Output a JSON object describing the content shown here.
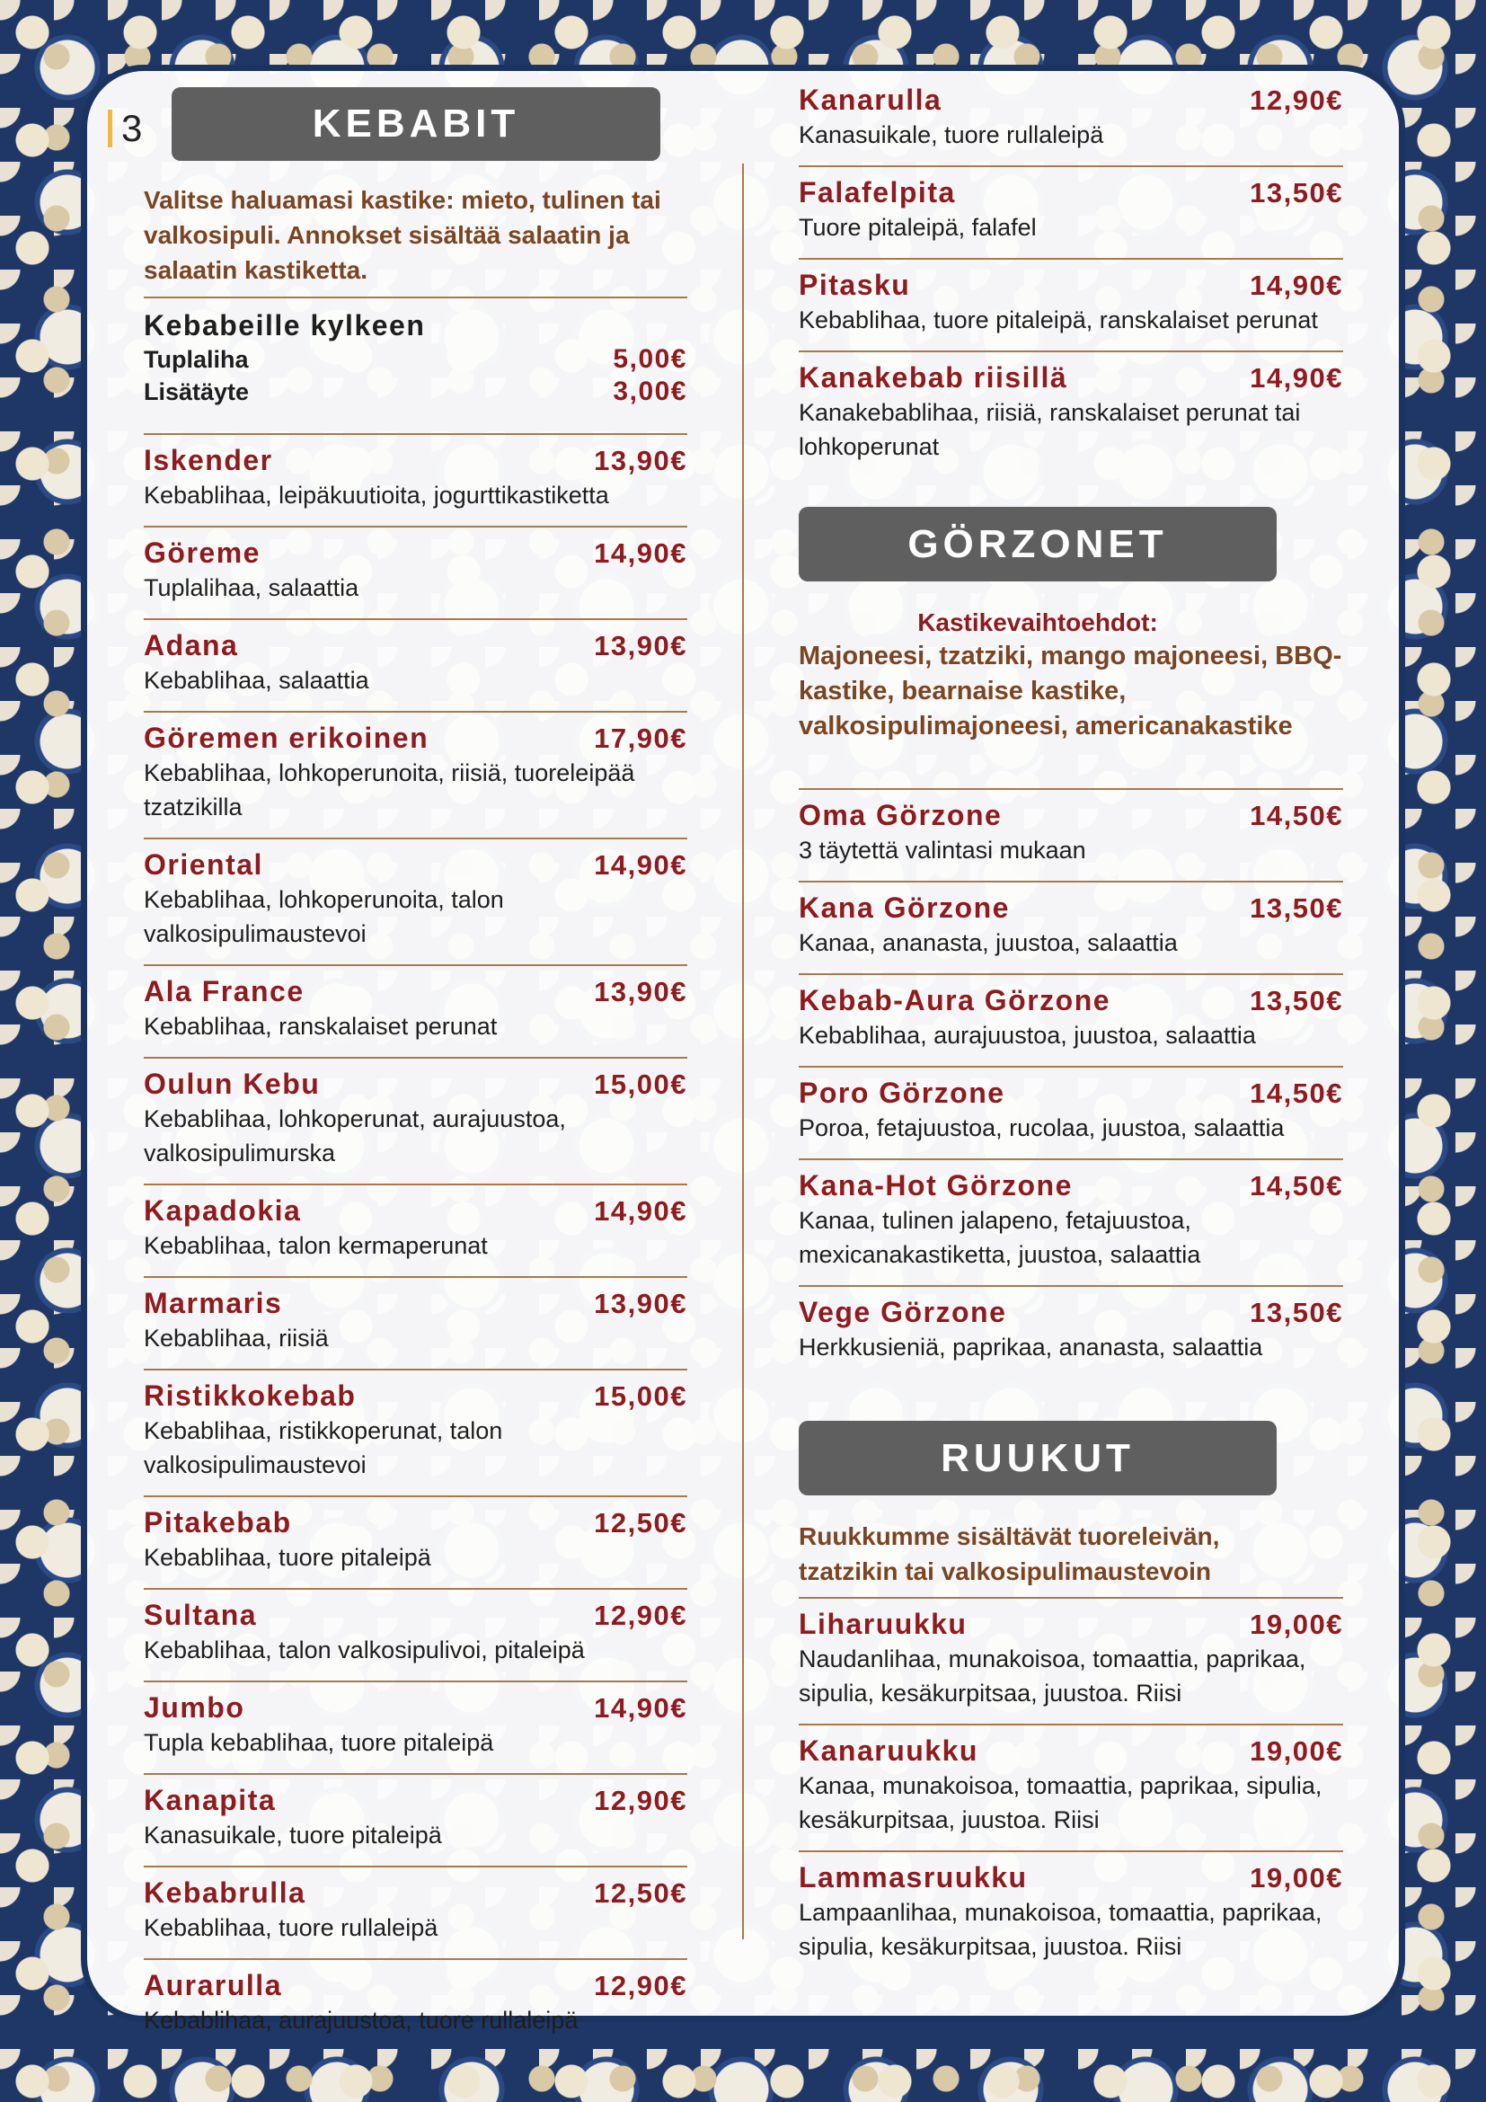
{
  "page_number": "3",
  "kebabit": {
    "title": "KEBABIT",
    "intro": "Valitse haluamasi kastike: mieto, tulinen tai valkosipuli. Annokset sisältää salaatin ja salaatin kastiketta.",
    "sides_title": "Kebabeille kylkeen",
    "sides": [
      {
        "name": "Tuplaliha",
        "price": "5,00€"
      },
      {
        "name": "Lisätäyte",
        "price": "3,00€"
      }
    ],
    "items": [
      {
        "name": "Iskender",
        "price": "13,90€",
        "desc": "Kebablihaa, leipäkuutioita, jogurttikastiketta"
      },
      {
        "name": "Göreme",
        "price": "14,90€",
        "desc": "Tuplalihaa, salaattia"
      },
      {
        "name": "Adana",
        "price": "13,90€",
        "desc": "Kebablihaa, salaattia"
      },
      {
        "name": "Göremen erikoinen",
        "price": "17,90€",
        "desc": "Kebablihaa, lohkoperunoita, riisiä, tuoreleipää tzatzikilla"
      },
      {
        "name": "Oriental",
        "price": "14,90€",
        "desc": "Kebablihaa, lohkoperunoita, talon valkosipulimaustevoi"
      },
      {
        "name": "Ala France",
        "price": "13,90€",
        "desc": "Kebablihaa, ranskalaiset perunat"
      },
      {
        "name": "Oulun Kebu",
        "price": "15,00€",
        "desc": "Kebablihaa, lohkoperunat, aurajuustoa, valkosipulimurska"
      },
      {
        "name": "Kapadokia",
        "price": "14,90€",
        "desc": "Kebablihaa, talon kermaperunat"
      },
      {
        "name": "Marmaris",
        "price": "13,90€",
        "desc": "Kebablihaa, riisiä"
      },
      {
        "name": "Ristikkokebab",
        "price": "15,00€",
        "desc": "Kebablihaa, ristikkoperunat, talon valkosipulimaustevoi"
      },
      {
        "name": "Pitakebab",
        "price": "12,50€",
        "desc": "Kebablihaa, tuore pitaleipä"
      },
      {
        "name": "Sultana",
        "price": "12,90€",
        "desc": "Kebablihaa, talon valkosipulivoi, pitaleipä"
      },
      {
        "name": "Jumbo",
        "price": "14,90€",
        "desc": "Tupla kebablihaa, tuore pitaleipä"
      },
      {
        "name": "Kanapita",
        "price": "12,90€",
        "desc": "Kanasuikale, tuore pitaleipä"
      },
      {
        "name": "Kebabrulla",
        "price": "12,50€",
        "desc": "Kebablihaa, tuore rullaleipä"
      },
      {
        "name": "Aurarulla",
        "price": "12,90€",
        "desc": "Kebablihaa, aurajuustoa, tuore rullaleipä"
      }
    ],
    "items_continued": [
      {
        "name": "Kanarulla",
        "price": "12,90€",
        "desc": "Kanasuikale, tuore rullaleipä"
      },
      {
        "name": "Falafelpita",
        "price": "13,50€",
        "desc": "Tuore pitaleipä, falafel"
      },
      {
        "name": "Pitasku",
        "price": "14,90€",
        "desc": "Kebablihaa, tuore pitaleipä, ranskalaiset perunat"
      },
      {
        "name": "Kanakebab riisillä",
        "price": "14,90€",
        "desc": "Kanakebablihaa, riisiä, ranskalaiset perunat tai lohkoperunat"
      }
    ]
  },
  "gorzonet": {
    "title": "GÖRZONET",
    "sauce_heading": "Kastikevaihtoehdot:",
    "sauces": "Majoneesi, tzatziki, mango majoneesi, BBQ-kastike, bearnaise kastike, valkosipulimajoneesi, americanakastike",
    "items": [
      {
        "name": "Oma Görzone",
        "price": "14,50€",
        "desc": "3 täytettä valintasi mukaan"
      },
      {
        "name": "Kana Görzone",
        "price": "13,50€",
        "desc": "Kanaa, ananasta, juustoa, salaattia"
      },
      {
        "name": "Kebab-Aura Görzone",
        "price": "13,50€",
        "desc": "Kebablihaa, aurajuustoa, juustoa, salaattia"
      },
      {
        "name": "Poro Görzone",
        "price": "14,50€",
        "desc": "Poroa, fetajuustoa, rucolaa, juustoa, salaattia"
      },
      {
        "name": "Kana-Hot Görzone",
        "price": "14,50€",
        "desc": "Kanaa, tulinen jalapeno, fetajuustoa, mexicanakastiketta, juustoa, salaattia"
      },
      {
        "name": "Vege Görzone",
        "price": "13,50€",
        "desc": "Herkkusieniä, paprikaa, ananasta, salaattia"
      }
    ]
  },
  "ruukut": {
    "title": "RUUKUT",
    "intro": "Ruukkumme sisältävät tuoreleivän, tzatzikin tai valkosipulimaustevoin",
    "items": [
      {
        "name": "Liharuukku",
        "price": "19,00€",
        "desc": "Naudanlihaa, munakoisoa, tomaattia, paprikaa, sipulia, kesäkurpitsaa, juustoa. Riisi"
      },
      {
        "name": "Kanaruukku",
        "price": "19,00€",
        "desc": "Kanaa, munakoisoa, tomaattia, paprikaa, sipulia, kesäkurpitsaa, juustoa. Riisi"
      },
      {
        "name": "Lammasruukku",
        "price": "19,00€",
        "desc": "Lampaanlihaa, munakoisoa, tomaattia, paprikaa, sipulia, kesäkurpitsaa, juustoa. Riisi"
      }
    ]
  },
  "colors": {
    "accent": "#8e1b1e",
    "intro": "#7a4522",
    "rule": "#a9794a",
    "header_box": "#5f5f5f",
    "frame": "#1a3360"
  }
}
